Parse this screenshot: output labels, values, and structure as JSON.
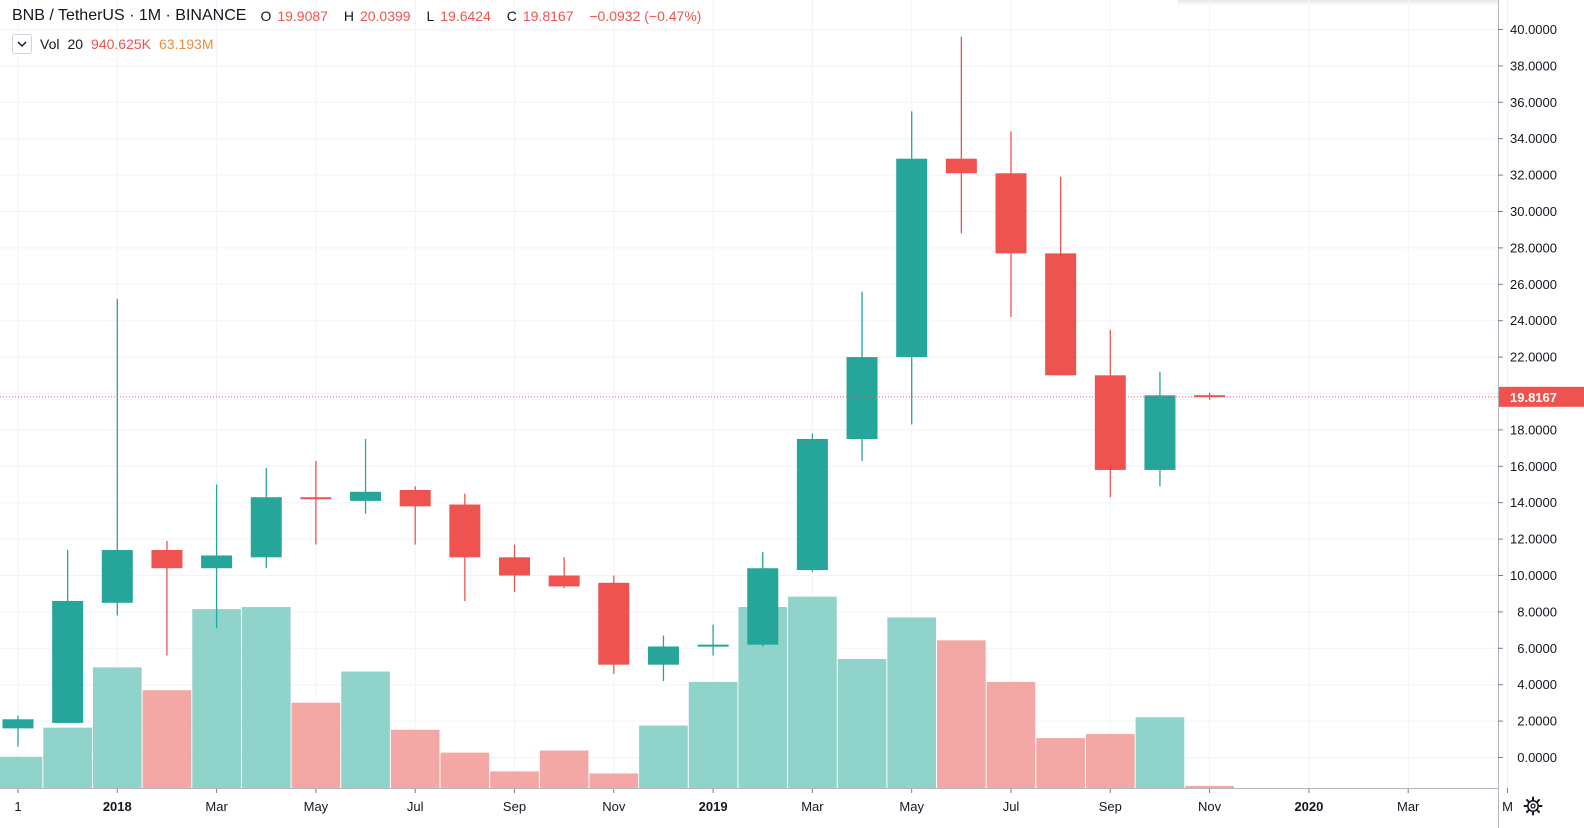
{
  "legend": {
    "symbol": "BNB / TetherUS · 1M · BINANCE",
    "open_label": "O",
    "open": "19.9087",
    "high_label": "H",
    "high": "20.0399",
    "low_label": "L",
    "low": "19.6424",
    "close_label": "C",
    "close": "19.8167",
    "change": "−0.0932 (−0.47%)"
  },
  "volume_legend": {
    "label": "Vol",
    "length": "20",
    "value1": "940.625K",
    "value2": "63.193M"
  },
  "price_tag": "19.8167",
  "colors": {
    "up": "#26a69a",
    "down": "#ef5350",
    "vol_up": "#8fd3cb",
    "vol_down": "#f4a8a6",
    "grid": "#f0f3fa",
    "price_line": "#ef5350"
  },
  "icons": {
    "settings": "gear-icon",
    "collapse": "chevron-down-icon"
  },
  "chart_data": {
    "type": "candlestick",
    "title": "BNB / TetherUS · 1M · BINANCE",
    "ylim": [
      -1,
      40
    ],
    "y_ticks": [
      "40.0000",
      "38.0000",
      "36.0000",
      "34.0000",
      "32.0000",
      "30.0000",
      "28.0000",
      "26.0000",
      "24.0000",
      "22.0000",
      "20.0000",
      "18.0000",
      "16.0000",
      "14.0000",
      "12.0000",
      "10.0000",
      "8.0000",
      "6.0000",
      "4.0000",
      "2.0000",
      "0.0000"
    ],
    "x_ticks": [
      "1",
      "2018",
      "Mar",
      "May",
      "Jul",
      "Sep",
      "Nov",
      "2019",
      "Mar",
      "May",
      "Jul",
      "Sep",
      "Nov",
      "2020",
      "Mar",
      "M"
    ],
    "bold_x_ticks": [
      "2018",
      "2019",
      "2020"
    ],
    "last_price": 19.8167,
    "volume_scale_max": 9.6,
    "candles": [
      {
        "period": "2017-11",
        "open": 1.6,
        "high": 2.3,
        "low": 0.6,
        "close": 2.1,
        "volume": 1.5
      },
      {
        "period": "2017-12",
        "open": 1.9,
        "high": 11.4,
        "low": 1.9,
        "close": 8.6,
        "volume": 2.9
      },
      {
        "period": "2018-01",
        "open": 8.5,
        "high": 25.2,
        "low": 7.8,
        "close": 11.4,
        "volume": 5.8
      },
      {
        "period": "2018-02",
        "open": 11.4,
        "high": 11.9,
        "low": 5.6,
        "close": 10.4,
        "volume": 4.7
      },
      {
        "period": "2018-03",
        "open": 10.4,
        "high": 15.0,
        "low": 7.1,
        "close": 11.1,
        "volume": 8.6
      },
      {
        "period": "2018-04",
        "open": 11.0,
        "high": 15.9,
        "low": 10.4,
        "close": 14.3,
        "volume": 8.7
      },
      {
        "period": "2018-05",
        "open": 14.3,
        "high": 16.3,
        "low": 11.7,
        "close": 14.2,
        "volume": 4.1
      },
      {
        "period": "2018-06",
        "open": 14.1,
        "high": 17.5,
        "low": 13.4,
        "close": 14.6,
        "volume": 5.6
      },
      {
        "period": "2018-07",
        "open": 14.7,
        "high": 14.9,
        "low": 11.7,
        "close": 13.8,
        "volume": 2.8
      },
      {
        "period": "2018-08",
        "open": 13.9,
        "high": 14.5,
        "low": 8.6,
        "close": 11.0,
        "volume": 1.7
      },
      {
        "period": "2018-09",
        "open": 11.0,
        "high": 11.7,
        "low": 9.1,
        "close": 10.0,
        "volume": 0.8
      },
      {
        "period": "2018-10",
        "open": 10.0,
        "high": 11.0,
        "low": 9.3,
        "close": 9.4,
        "volume": 1.8
      },
      {
        "period": "2018-11",
        "open": 9.6,
        "high": 10.0,
        "low": 4.6,
        "close": 5.1,
        "volume": 0.7
      },
      {
        "period": "2018-12",
        "open": 5.1,
        "high": 6.7,
        "low": 4.2,
        "close": 6.1,
        "volume": 3.0
      },
      {
        "period": "2019-01",
        "open": 6.1,
        "high": 7.3,
        "low": 5.6,
        "close": 6.2,
        "volume": 5.1
      },
      {
        "period": "2019-02",
        "open": 6.2,
        "high": 11.3,
        "low": 6.1,
        "close": 10.4,
        "volume": 8.7
      },
      {
        "period": "2019-03",
        "open": 10.3,
        "high": 17.8,
        "low": 10.2,
        "close": 17.5,
        "volume": 9.2
      },
      {
        "period": "2019-04",
        "open": 17.5,
        "high": 25.6,
        "low": 16.3,
        "close": 22.0,
        "volume": 6.2
      },
      {
        "period": "2019-05",
        "open": 22.0,
        "high": 35.5,
        "low": 18.3,
        "close": 32.9,
        "volume": 8.2
      },
      {
        "period": "2019-06",
        "open": 32.9,
        "high": 39.6,
        "low": 28.8,
        "close": 32.1,
        "volume": 7.1
      },
      {
        "period": "2019-07",
        "open": 32.1,
        "high": 34.4,
        "low": 24.2,
        "close": 27.7,
        "volume": 5.1
      },
      {
        "period": "2019-08",
        "open": 27.7,
        "high": 31.9,
        "low": 21.0,
        "close": 21.0,
        "volume": 2.4
      },
      {
        "period": "2019-09",
        "open": 21.0,
        "high": 23.5,
        "low": 14.3,
        "close": 15.8,
        "volume": 2.6
      },
      {
        "period": "2019-10",
        "open": 15.8,
        "high": 21.2,
        "low": 14.9,
        "close": 19.9,
        "volume": 3.4
      },
      {
        "period": "2019-11",
        "open": 19.9087,
        "high": 20.0399,
        "low": 19.6424,
        "close": 19.8167,
        "volume": 0.1
      }
    ]
  }
}
